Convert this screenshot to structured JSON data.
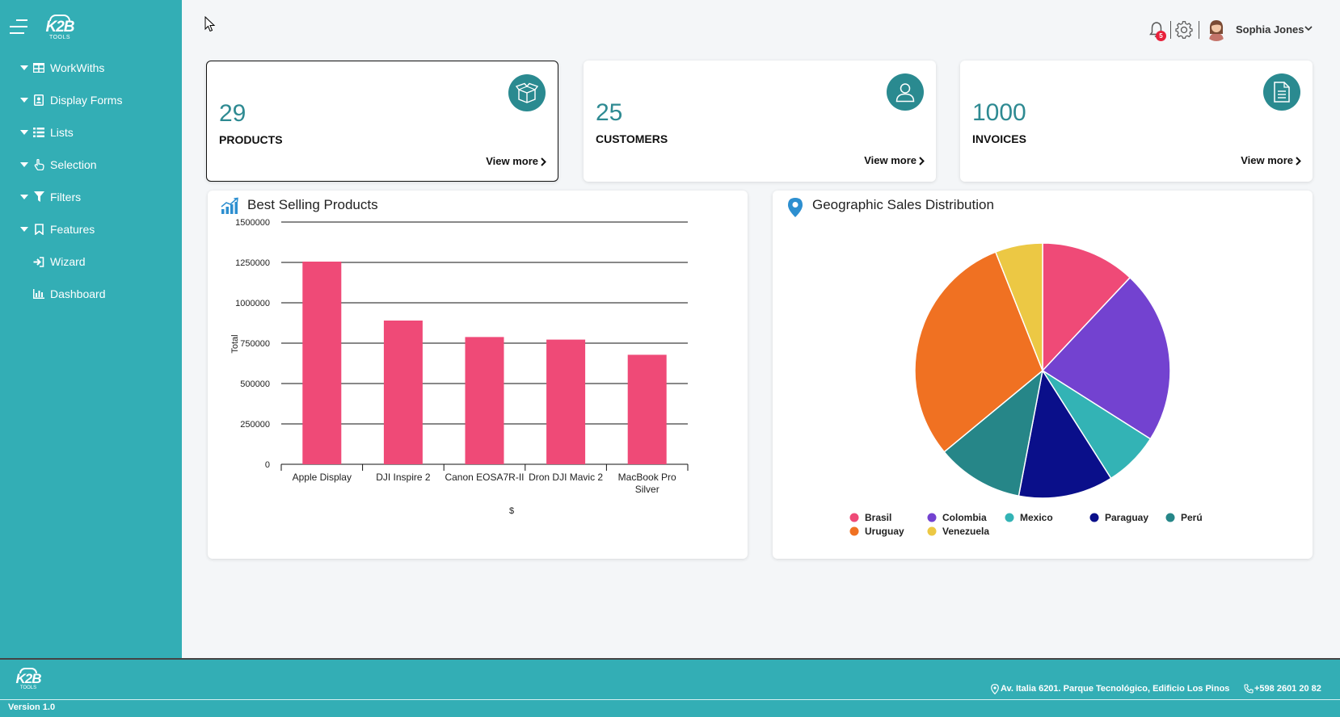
{
  "app": {
    "logo_text": "K2B",
    "logo_sub": "TOOLS"
  },
  "sidebar": {
    "items": [
      {
        "label": "WorkWiths",
        "icon": "table-icon",
        "expandable": true
      },
      {
        "label": "Display Forms",
        "icon": "id-card-icon",
        "expandable": true
      },
      {
        "label": "Lists",
        "icon": "list-icon",
        "expandable": true
      },
      {
        "label": "Selection",
        "icon": "hand-pointer-icon",
        "expandable": true
      },
      {
        "label": "Filters",
        "icon": "filter-icon",
        "expandable": true
      },
      {
        "label": "Features",
        "icon": "bookmark-icon",
        "expandable": true
      },
      {
        "label": "Wizard",
        "icon": "sign-in-icon",
        "expandable": false
      },
      {
        "label": "Dashboard",
        "icon": "bar-chart-icon",
        "expandable": false
      }
    ]
  },
  "topbar": {
    "notifications_count": "5",
    "user_name": "Sophia Jones"
  },
  "stats": [
    {
      "value": "29",
      "label": "PRODUCTS",
      "link": "View more",
      "icon": "box-icon"
    },
    {
      "value": "25",
      "label": "CUSTOMERS",
      "link": "View more",
      "icon": "user-icon"
    },
    {
      "value": "1000",
      "label": "INVOICES",
      "link": "View more",
      "icon": "document-icon"
    }
  ],
  "colors": {
    "sidebar": "#33aeb5",
    "accent": "#2a8a90",
    "bar": "#ef4a77"
  },
  "chart_data": [
    {
      "type": "bar",
      "title": "Best Selling Products",
      "categories": [
        "Apple Display",
        "DJI Inspire 2",
        "Canon EOSA7R-II",
        "Dron DJI Mavic 2",
        "MacBook Pro Silver"
      ],
      "values": [
        1255000,
        890000,
        788000,
        772000,
        678000
      ],
      "xlabel": "$",
      "ylabel": "Total",
      "ylim": [
        0,
        1500000
      ],
      "yticks": [
        "0",
        "250000",
        "500000",
        "750000",
        "1000000",
        "1250000",
        "1500000"
      ],
      "grid": true,
      "color": "#ef4a77"
    },
    {
      "type": "pie",
      "title": "Geographic Sales Distribution",
      "legend_position": "bottom",
      "slices": [
        {
          "name": "Brasil",
          "value": 12,
          "color": "#ef4a77"
        },
        {
          "name": "Colombia",
          "value": 22,
          "color": "#7342d0"
        },
        {
          "name": "Mexico",
          "value": 7,
          "color": "#33b3b5"
        },
        {
          "name": "Paraguay",
          "value": 12,
          "color": "#0a0f8a"
        },
        {
          "name": "Perú",
          "value": 11,
          "color": "#268688"
        },
        {
          "name": "Uruguay",
          "value": 30,
          "color": "#f07122"
        },
        {
          "name": "Venezuela",
          "value": 6,
          "color": "#ecc844"
        }
      ]
    }
  ],
  "footer": {
    "address": "Av. Italia 6201. Parque Tecnológico, Edificio Los Pinos",
    "phone": "+598 2601 20 82",
    "version": "Version 1.0"
  }
}
